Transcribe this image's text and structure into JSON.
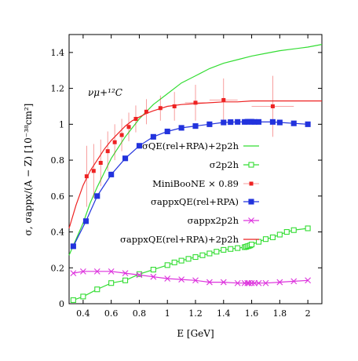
{
  "chart_data": {
    "type": "line",
    "annotation": "νμ+¹²C",
    "xlabel": "E [GeV]",
    "ylabel": "σ, σappx/(A − Z) [10⁻³⁸cm²]",
    "xlim": [
      0.3,
      2.1
    ],
    "ylim": [
      0,
      1.5
    ],
    "x_ticks": [
      "0.4",
      "0.6",
      "0.8",
      "1",
      "1.2",
      "1.4",
      "1.6",
      "1.8",
      "2"
    ],
    "y_ticks": [
      "0",
      "0.2",
      "0.4",
      "0.6",
      "0.8",
      "1",
      "1.2",
      "1.4"
    ],
    "grid": false,
    "legend_position": "right",
    "series": [
      {
        "name": "σQE(rel+RPA)+2p2h",
        "style": "line",
        "color": "#33dd33",
        "x": [
          0.3,
          0.35,
          0.4,
          0.45,
          0.5,
          0.55,
          0.6,
          0.65,
          0.7,
          0.75,
          0.8,
          0.9,
          1.0,
          1.1,
          1.2,
          1.3,
          1.4,
          1.5,
          1.6,
          1.7,
          1.8,
          1.9,
          2.0,
          2.1
        ],
        "y": [
          0.27,
          0.36,
          0.45,
          0.56,
          0.65,
          0.73,
          0.81,
          0.87,
          0.93,
          0.98,
          1.03,
          1.11,
          1.17,
          1.23,
          1.27,
          1.31,
          1.34,
          1.36,
          1.38,
          1.395,
          1.41,
          1.42,
          1.43,
          1.445
        ]
      },
      {
        "name": "σ2p2h",
        "style": "line+square",
        "color": "#33dd33",
        "x": [
          0.33,
          0.4,
          0.5,
          0.6,
          0.7,
          0.8,
          0.9,
          1.0,
          1.05,
          1.1,
          1.15,
          1.2,
          1.25,
          1.3,
          1.35,
          1.4,
          1.45,
          1.5,
          1.55,
          1.56,
          1.57,
          1.58,
          1.59,
          1.6,
          1.65,
          1.7,
          1.75,
          1.8,
          1.85,
          1.9,
          2.0
        ],
        "y": [
          0.02,
          0.04,
          0.08,
          0.115,
          0.13,
          0.165,
          0.19,
          0.215,
          0.23,
          0.24,
          0.25,
          0.26,
          0.27,
          0.28,
          0.29,
          0.3,
          0.305,
          0.31,
          0.315,
          0.317,
          0.32,
          0.322,
          0.325,
          0.33,
          0.345,
          0.36,
          0.37,
          0.385,
          0.4,
          0.41,
          0.42
        ]
      },
      {
        "name": "MiniBooNE × 0.89",
        "style": "points+errorbars",
        "color": "#ee2222",
        "x": [
          0.425,
          0.475,
          0.525,
          0.575,
          0.625,
          0.675,
          0.725,
          0.775,
          0.85,
          0.95,
          1.05,
          1.2,
          1.4,
          1.75
        ],
        "y": [
          0.71,
          0.74,
          0.785,
          0.85,
          0.9,
          0.94,
          0.985,
          1.03,
          1.07,
          1.09,
          1.1,
          1.12,
          1.135,
          1.1
        ],
        "yerr": [
          0.17,
          0.15,
          0.13,
          0.11,
          0.1,
          0.09,
          0.08,
          0.075,
          0.07,
          0.07,
          0.08,
          0.1,
          0.12,
          0.17
        ],
        "xerr": [
          0,
          0,
          0,
          0,
          0,
          0,
          0,
          0,
          0,
          0,
          0,
          0.075,
          0.1,
          0.15
        ]
      },
      {
        "name": "σappxQE(rel+RPA)",
        "style": "line+square",
        "color": "#2233dd",
        "x": [
          0.33,
          0.42,
          0.5,
          0.6,
          0.7,
          0.8,
          0.9,
          1.0,
          1.1,
          1.2,
          1.3,
          1.4,
          1.45,
          1.5,
          1.55,
          1.57,
          1.58,
          1.59,
          1.6,
          1.62,
          1.65,
          1.75,
          1.8,
          1.9,
          2.0
        ],
        "y": [
          0.32,
          0.46,
          0.6,
          0.72,
          0.81,
          0.88,
          0.93,
          0.96,
          0.98,
          0.99,
          1.0,
          1.01,
          1.012,
          1.013,
          1.013,
          1.014,
          1.014,
          1.014,
          1.014,
          1.013,
          1.013,
          1.013,
          1.01,
          1.005,
          1.0
        ]
      },
      {
        "name": "σappx2p2h",
        "style": "line+cross",
        "color": "#dd33dd",
        "x": [
          0.33,
          0.4,
          0.5,
          0.6,
          0.7,
          0.8,
          0.9,
          1.0,
          1.1,
          1.2,
          1.3,
          1.4,
          1.5,
          1.55,
          1.57,
          1.58,
          1.6,
          1.62,
          1.65,
          1.7,
          1.8,
          1.9,
          2.0
        ],
        "y": [
          0.17,
          0.18,
          0.18,
          0.18,
          0.17,
          0.16,
          0.15,
          0.14,
          0.135,
          0.13,
          0.12,
          0.12,
          0.115,
          0.115,
          0.115,
          0.115,
          0.115,
          0.115,
          0.115,
          0.115,
          0.12,
          0.125,
          0.13
        ]
      },
      {
        "name": "σappxQE(rel+RPA)+2p2h",
        "style": "line",
        "color": "#ee2222",
        "x": [
          0.3,
          0.35,
          0.4,
          0.45,
          0.5,
          0.55,
          0.6,
          0.65,
          0.7,
          0.75,
          0.8,
          0.85,
          0.9,
          1.0,
          1.1,
          1.2,
          1.3,
          1.4,
          1.5,
          1.6,
          1.7,
          1.8,
          1.9,
          2.0,
          2.1
        ],
        "y": [
          0.42,
          0.55,
          0.66,
          0.74,
          0.8,
          0.86,
          0.91,
          0.95,
          0.99,
          1.02,
          1.04,
          1.06,
          1.075,
          1.1,
          1.11,
          1.115,
          1.12,
          1.125,
          1.125,
          1.13,
          1.13,
          1.13,
          1.13,
          1.13,
          1.13
        ]
      }
    ]
  }
}
